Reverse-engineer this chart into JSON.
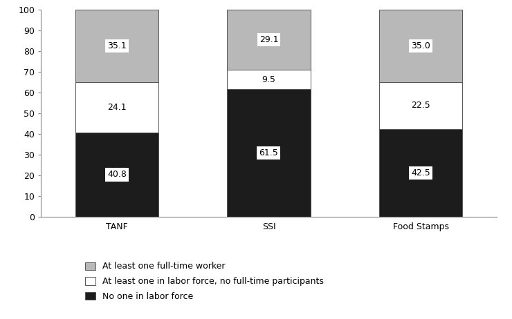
{
  "categories": [
    "TANF",
    "SSI",
    "Food Stamps"
  ],
  "no_one": [
    40.8,
    61.5,
    42.5
  ],
  "at_least_parttime": [
    24.1,
    9.5,
    22.5
  ],
  "at_least_fulltime": [
    35.1,
    29.1,
    35.0
  ],
  "colors": {
    "no_one": "#1c1c1c",
    "at_least_parttime": "#ffffff",
    "at_least_fulltime": "#b8b8b8"
  },
  "bar_width": 0.55,
  "ylim": [
    0,
    100
  ],
  "yticks": [
    0,
    10,
    20,
    30,
    40,
    50,
    60,
    70,
    80,
    90,
    100
  ],
  "legend_labels": [
    "At least one full-time worker",
    "At least one in labor force, no full-time participants",
    "No one in labor force"
  ],
  "legend_colors": [
    "#b8b8b8",
    "#ffffff",
    "#1c1c1c"
  ],
  "label_fontsize": 9,
  "tick_fontsize": 9,
  "legend_fontsize": 9,
  "edgecolor": "#555555"
}
